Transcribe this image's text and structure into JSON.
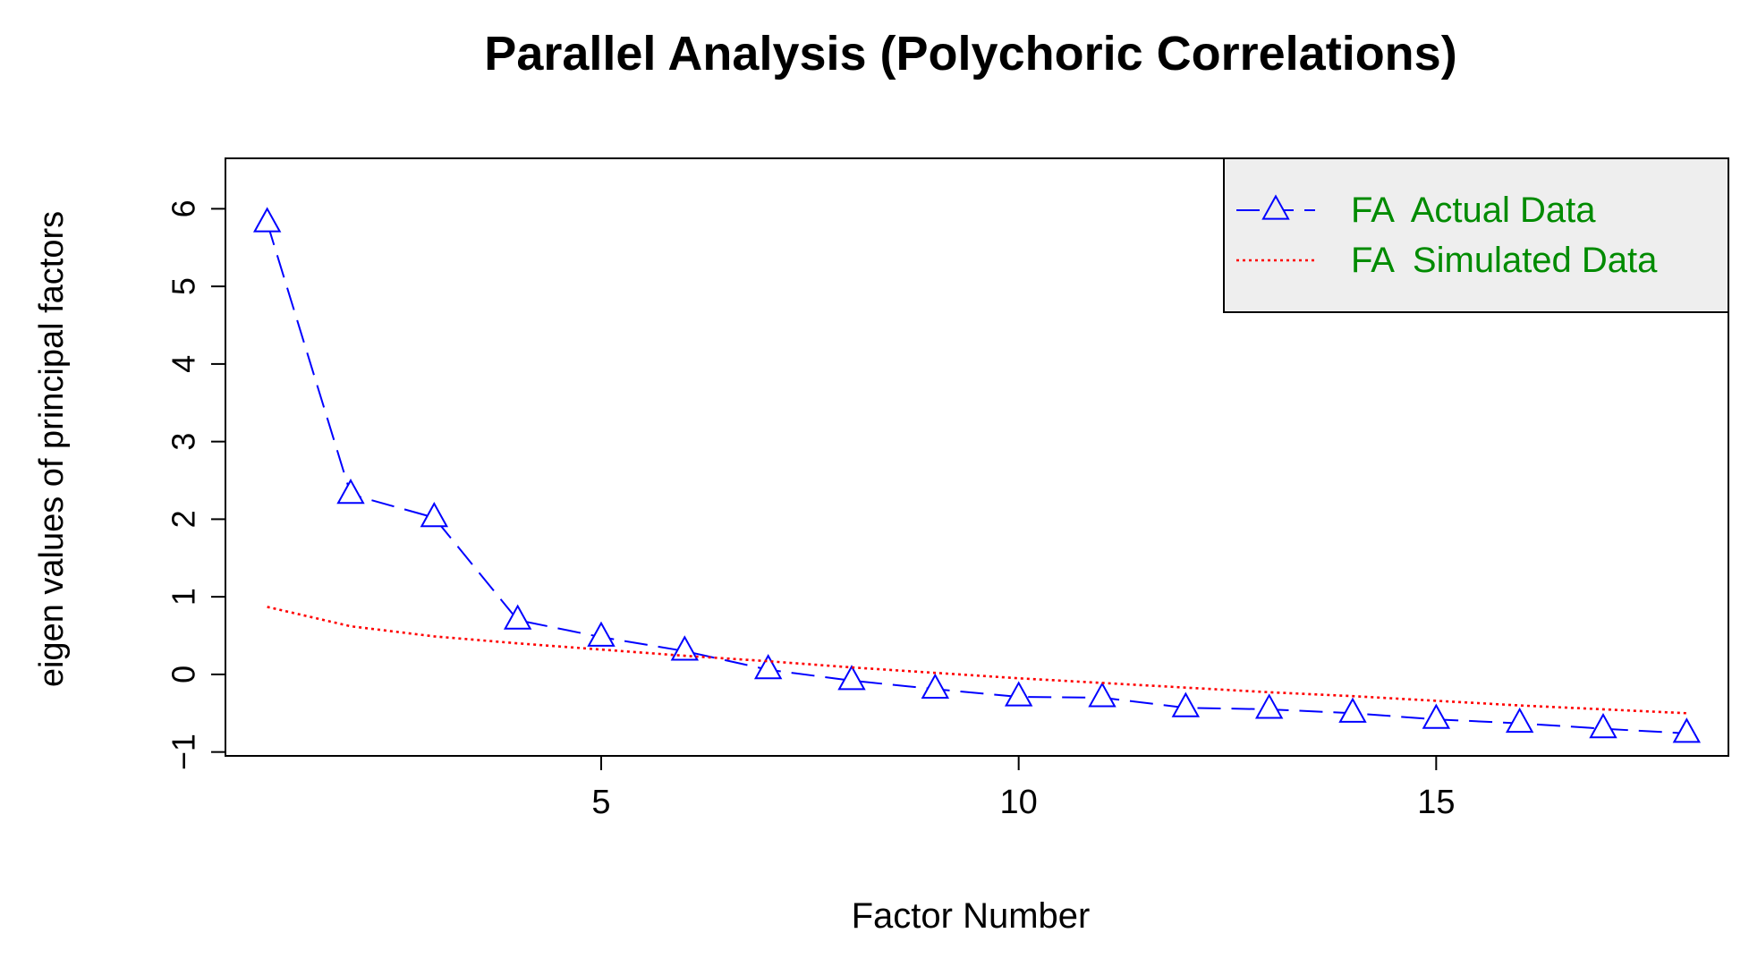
{
  "chart_data": {
    "type": "line",
    "title": "Parallel Analysis (Polychoric Correlations)",
    "xlabel": "Factor Number",
    "ylabel": "eigen values of principal factors",
    "xlim": [
      0.5,
      18.5
    ],
    "ylim": [
      -1.05,
      6.65
    ],
    "x_ticks": [
      5,
      10,
      15
    ],
    "y_ticks": [
      -1,
      0,
      1,
      2,
      3,
      4,
      5,
      6
    ],
    "grid": false,
    "legend_position": "top-right",
    "x": [
      1,
      2,
      3,
      4,
      5,
      6,
      7,
      8,
      9,
      10,
      11,
      12,
      13,
      14,
      15,
      16,
      17,
      18
    ],
    "series": [
      {
        "name": "FA  Actual Data",
        "style": "dashed",
        "marker": "triangle",
        "color": "#0000ff",
        "values": [
          5.82,
          2.32,
          2.02,
          0.7,
          0.48,
          0.3,
          0.06,
          -0.08,
          -0.19,
          -0.29,
          -0.3,
          -0.43,
          -0.45,
          -0.5,
          -0.58,
          -0.63,
          -0.7,
          -0.76
        ]
      },
      {
        "name": "FA  Simulated Data",
        "style": "dotted",
        "marker": "none",
        "color": "#ff0000",
        "values": [
          0.87,
          0.62,
          0.49,
          0.4,
          0.32,
          0.24,
          0.17,
          0.09,
          0.02,
          -0.05,
          -0.11,
          -0.17,
          -0.23,
          -0.28,
          -0.34,
          -0.4,
          -0.45,
          -0.5
        ]
      }
    ],
    "colors": {
      "legend_text": "#008b00",
      "legend_background": "#eeeeee",
      "axis": "#000000"
    }
  }
}
